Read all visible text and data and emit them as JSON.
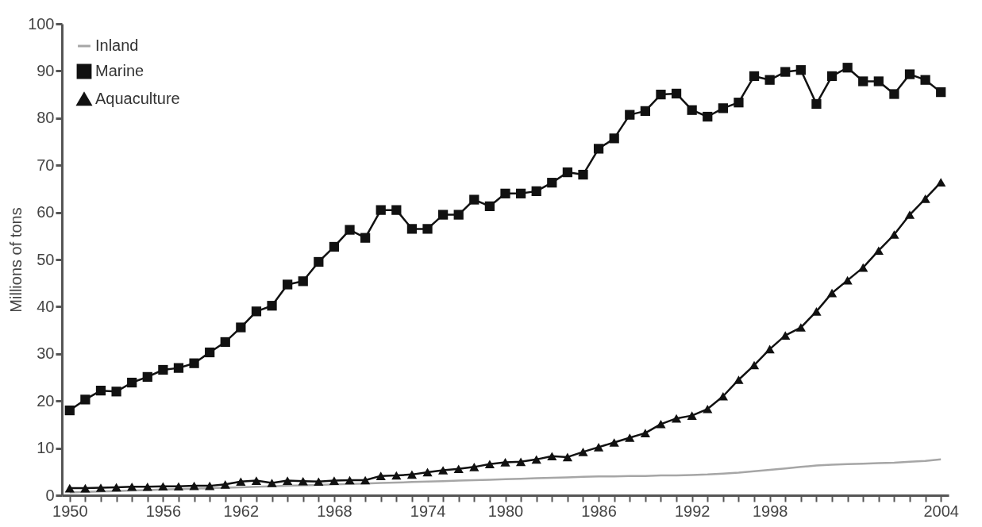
{
  "chart_data": {
    "type": "line",
    "ylabel": "Millions of tons",
    "categories": [
      "1950",
      null,
      null,
      null,
      null,
      null,
      "1956",
      null,
      null,
      null,
      null,
      "1962",
      null,
      null,
      null,
      null,
      null,
      "1968",
      null,
      null,
      null,
      null,
      null,
      "1974",
      null,
      null,
      null,
      null,
      "1980",
      null,
      null,
      null,
      null,
      null,
      "1986",
      null,
      null,
      null,
      null,
      null,
      "1992",
      null,
      null,
      null,
      null,
      "1998",
      null,
      null,
      null,
      null,
      null,
      null,
      null,
      null,
      null,
      null,
      "2004"
    ],
    "series": [
      {
        "name": "Inland",
        "color": "#a6a6a6",
        "marker": "none",
        "values": [
          0.6,
          0.7,
          0.8,
          0.9,
          1.0,
          1.1,
          1.2,
          1.3,
          1.4,
          1.5,
          1.6,
          1.7,
          1.8,
          1.9,
          2.0,
          2.1,
          2.2,
          2.3,
          2.4,
          2.5,
          2.6,
          2.7,
          2.8,
          2.9,
          3.0,
          3.1,
          3.2,
          3.3,
          3.4,
          3.5,
          3.6,
          3.7,
          3.8,
          3.9,
          4.0,
          4.0,
          4.1,
          4.1,
          4.2,
          4.2,
          4.3,
          4.4,
          4.6,
          4.8,
          5.1,
          5.4,
          5.7,
          6.0,
          6.3,
          6.5,
          6.6,
          6.7,
          6.8,
          6.9,
          7.1,
          7.3,
          7.6
        ]
      },
      {
        "name": "Marine",
        "color": "#111111",
        "marker": "square",
        "values": [
          18.0,
          20.3,
          22.2,
          22.0,
          23.9,
          25.1,
          26.6,
          27.0,
          28.0,
          30.3,
          32.5,
          35.6,
          39.0,
          40.2,
          44.7,
          45.4,
          49.5,
          52.7,
          56.3,
          54.6,
          60.5,
          60.5,
          56.5,
          56.5,
          59.5,
          59.5,
          62.7,
          61.3,
          64.0,
          64.0,
          64.5,
          66.3,
          68.5,
          68.0,
          73.5,
          75.7,
          80.7,
          81.5,
          85.0,
          85.2,
          81.7,
          80.3,
          82.1,
          83.3,
          88.9,
          88.1,
          89.8,
          90.2,
          83.0,
          88.9,
          90.7,
          87.8,
          87.8,
          85.1,
          89.3,
          88.1,
          85.5
        ]
      },
      {
        "name": "Aquaculture",
        "color": "#111111",
        "marker": "triangle",
        "values": [
          1.5,
          1.5,
          1.6,
          1.7,
          1.8,
          1.8,
          1.9,
          1.9,
          2.0,
          2.0,
          2.3,
          2.9,
          3.1,
          2.6,
          3.1,
          3.0,
          2.9,
          3.1,
          3.2,
          3.2,
          4.1,
          4.2,
          4.4,
          4.9,
          5.3,
          5.6,
          6.0,
          6.6,
          7.0,
          7.1,
          7.6,
          8.3,
          8.1,
          9.2,
          10.2,
          11.2,
          12.2,
          13.2,
          15.1,
          16.3,
          16.9,
          18.3,
          21.0,
          24.5,
          27.6,
          31.0,
          33.9,
          35.6,
          39.0,
          42.9,
          45.6,
          48.3,
          51.9,
          55.3,
          59.5,
          62.9,
          66.4
        ]
      }
    ],
    "ylim": [
      0,
      100
    ],
    "yticks": [
      0,
      10,
      20,
      30,
      40,
      50,
      60,
      70,
      80,
      90,
      100
    ],
    "grid": false,
    "legend": "top left",
    "line_style": "solid"
  }
}
